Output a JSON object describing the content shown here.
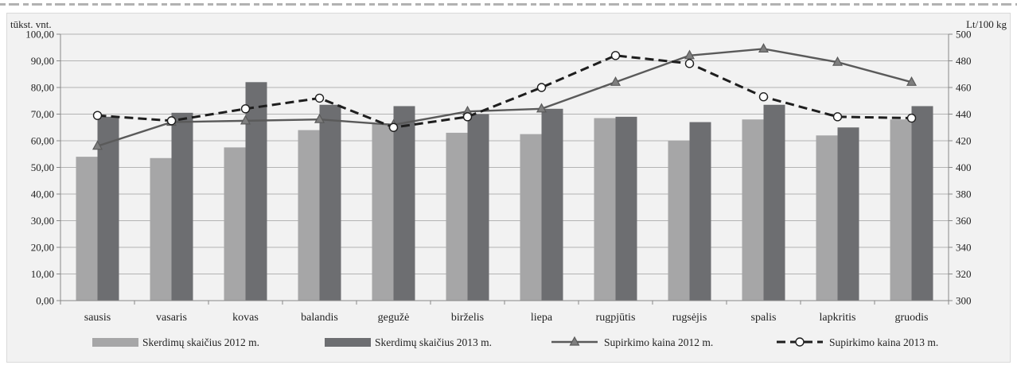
{
  "chart_data": {
    "type": "bar",
    "left_unit": "tūkst. vnt.",
    "right_unit": "Lt/100 kg",
    "categories": [
      "sausis",
      "vasaris",
      "kovas",
      "balandis",
      "gegužė",
      "birželis",
      "liepa",
      "rugpjūtis",
      "rugsėjis",
      "spalis",
      "lapkritis",
      "gruodis"
    ],
    "ylim_left": [
      0,
      100
    ],
    "ylim_right": [
      300,
      500
    ],
    "left_ticks": [
      "0,00",
      "10,00",
      "20,00",
      "30,00",
      "40,00",
      "50,00",
      "60,00",
      "70,00",
      "80,00",
      "90,00",
      "100,00"
    ],
    "right_ticks": [
      "300",
      "320",
      "340",
      "360",
      "380",
      "400",
      "420",
      "440",
      "460",
      "480",
      "500"
    ],
    "grid": true,
    "legend_position": "bottom",
    "bar_series": [
      {
        "name": "Skerdimų skaičius 2012 m.",
        "color": "#a6a6a7",
        "axis": "left",
        "values": [
          54,
          53.5,
          57.5,
          64,
          66.5,
          63,
          62.5,
          68.5,
          60,
          68,
          62,
          68
        ]
      },
      {
        "name": "Skerdimų skaičius 2013 m.",
        "color": "#6d6e71",
        "axis": "left",
        "values": [
          69,
          70.5,
          82,
          73.5,
          73,
          70,
          72,
          69,
          67,
          73.5,
          65,
          73
        ]
      }
    ],
    "line_series": [
      {
        "name": "Supirkimo kaina 2012 m.",
        "color": "#5a5a5a",
        "marker": "triangle",
        "dash": "solid",
        "axis": "right",
        "values": [
          416,
          434,
          435,
          436,
          432,
          442,
          444,
          464,
          484,
          489,
          479,
          464
        ]
      },
      {
        "name": "Supirkimo kaina 2013 m.",
        "color": "#1e1e1e",
        "marker": "circle",
        "dash": "dashed",
        "axis": "right",
        "values": [
          439,
          435,
          444,
          452,
          430,
          438,
          460,
          484,
          478,
          453,
          438,
          437
        ]
      }
    ]
  }
}
